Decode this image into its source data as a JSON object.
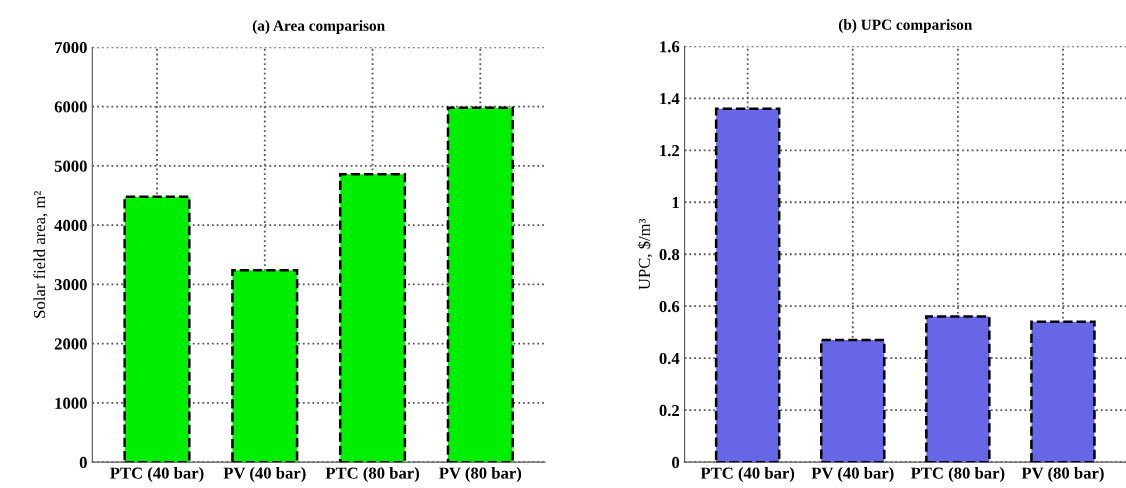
{
  "chart_data": [
    {
      "type": "bar",
      "title": "(a) Area comparison",
      "ylabel": "Solar field area, m²",
      "categories": [
        "PTC (40 bar)",
        "PV (40 bar)",
        "PTC (80 bar)",
        "PV (80 bar)"
      ],
      "series": [
        {
          "color": "#00ee00",
          "values": [
            4480,
            3240,
            4860,
            5980
          ]
        }
      ],
      "ylim": [
        0,
        7000
      ],
      "yticks": [
        0,
        1000,
        2000,
        3000,
        4000,
        5000,
        6000,
        7000
      ],
      "grid": true
    },
    {
      "type": "bar",
      "title": "(b) UPC comparison",
      "ylabel": "UPC, $/m³",
      "categories": [
        "PTC (40 bar)",
        "PV (40 bar)",
        "PTC (80 bar)",
        "PV (80 bar)"
      ],
      "series": [
        {
          "color": "#6666e6",
          "values": [
            1.36,
            0.47,
            0.56,
            0.54
          ]
        }
      ],
      "ylim": [
        0,
        1.6
      ],
      "yticks": [
        0,
        0.2,
        0.4,
        0.6,
        0.8,
        1,
        1.2,
        1.4,
        1.6
      ],
      "grid": true
    }
  ]
}
